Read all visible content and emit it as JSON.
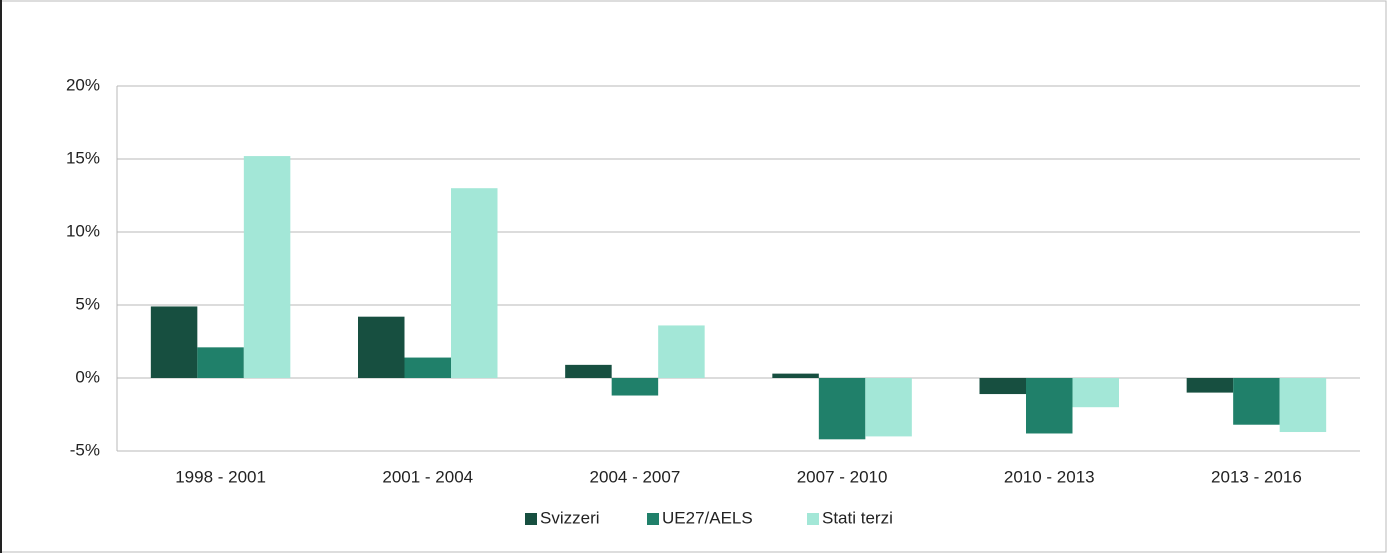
{
  "chart_data": {
    "type": "bar",
    "categories": [
      "1998 - 2001",
      "2001 - 2004",
      "2004 - 2007",
      "2007 - 2010",
      "2010 - 2013",
      "2013 - 2016"
    ],
    "series": [
      {
        "name": "Svizzeri",
        "color": "#174f40",
        "values": [
          4.9,
          4.2,
          0.9,
          0.3,
          -1.1,
          -1.0
        ]
      },
      {
        "name": "UE27/AELS",
        "color": "#20806a",
        "values": [
          2.1,
          1.4,
          -1.2,
          -4.2,
          -3.8,
          -3.2
        ]
      },
      {
        "name": "Stati terzi",
        "color": "#a3e7d7",
        "values": [
          15.2,
          13.0,
          3.6,
          -4.0,
          -2.0,
          -3.7
        ]
      }
    ],
    "ylim": [
      -5,
      20
    ],
    "yticks": [
      {
        "value": -5,
        "label": "-5%"
      },
      {
        "value": 0,
        "label": "0%"
      },
      {
        "value": 5,
        "label": "5%"
      },
      {
        "value": 10,
        "label": "10%"
      },
      {
        "value": 15,
        "label": "15%"
      },
      {
        "value": 20,
        "label": "20%"
      }
    ],
    "grid": true,
    "legend": "bottom"
  }
}
